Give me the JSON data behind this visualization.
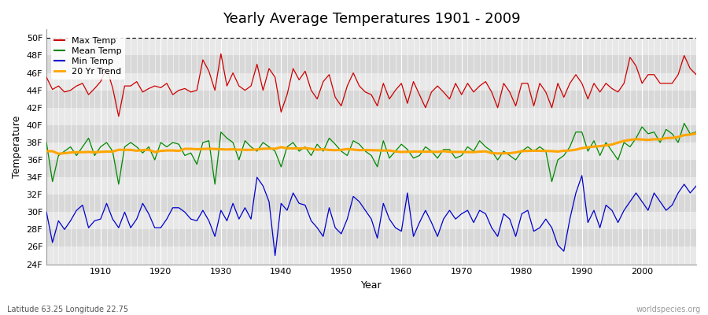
{
  "title": "Yearly Average Temperatures 1901 - 2009",
  "xlabel": "Year",
  "ylabel": "Temperature",
  "subtitle_left": "Latitude 63.25 Longitude 22.75",
  "subtitle_right": "worldspecies.org",
  "years": [
    1901,
    1902,
    1903,
    1904,
    1905,
    1906,
    1907,
    1908,
    1909,
    1910,
    1911,
    1912,
    1913,
    1914,
    1915,
    1916,
    1917,
    1918,
    1919,
    1920,
    1921,
    1922,
    1923,
    1924,
    1925,
    1926,
    1927,
    1928,
    1929,
    1930,
    1931,
    1932,
    1933,
    1934,
    1935,
    1936,
    1937,
    1938,
    1939,
    1940,
    1941,
    1942,
    1943,
    1944,
    1945,
    1946,
    1947,
    1948,
    1949,
    1950,
    1951,
    1952,
    1953,
    1954,
    1955,
    1956,
    1957,
    1958,
    1959,
    1960,
    1961,
    1962,
    1963,
    1964,
    1965,
    1966,
    1967,
    1968,
    1969,
    1970,
    1971,
    1972,
    1973,
    1974,
    1975,
    1976,
    1977,
    1978,
    1979,
    1980,
    1981,
    1982,
    1983,
    1984,
    1985,
    1986,
    1987,
    1988,
    1989,
    1990,
    1991,
    1992,
    1993,
    1994,
    1995,
    1996,
    1997,
    1998,
    1999,
    2000,
    2001,
    2002,
    2003,
    2004,
    2005,
    2006,
    2007,
    2008,
    2009
  ],
  "max_temp": [
    45.5,
    44.1,
    44.5,
    43.8,
    44.0,
    44.5,
    44.8,
    43.5,
    44.2,
    45.0,
    46.5,
    44.3,
    41.0,
    44.5,
    44.5,
    45.0,
    43.8,
    44.2,
    44.5,
    44.3,
    44.8,
    43.5,
    44.0,
    44.2,
    43.8,
    44.0,
    47.5,
    46.2,
    44.0,
    48.2,
    44.5,
    46.0,
    44.5,
    44.0,
    44.5,
    47.0,
    44.0,
    46.5,
    45.5,
    41.5,
    43.5,
    46.5,
    45.2,
    46.2,
    44.0,
    43.0,
    45.0,
    45.8,
    43.2,
    42.2,
    44.5,
    46.0,
    44.5,
    43.8,
    43.5,
    42.2,
    44.8,
    43.0,
    44.0,
    44.8,
    42.5,
    45.0,
    43.5,
    42.0,
    43.8,
    44.5,
    43.8,
    43.0,
    44.8,
    43.5,
    44.8,
    43.8,
    44.5,
    45.0,
    43.8,
    42.0,
    44.8,
    43.8,
    42.2,
    44.8,
    44.8,
    42.2,
    44.8,
    43.8,
    42.0,
    44.8,
    43.2,
    44.8,
    45.8,
    44.8,
    43.0,
    44.8,
    43.8,
    44.8,
    44.2,
    43.8,
    44.8,
    47.8,
    46.8,
    44.8,
    45.8,
    45.8,
    44.8,
    44.8,
    44.8,
    45.8,
    48.0,
    46.5,
    45.8
  ],
  "mean_temp": [
    38.0,
    33.5,
    36.5,
    37.0,
    37.5,
    36.5,
    37.5,
    38.5,
    36.5,
    37.5,
    38.0,
    37.0,
    33.2,
    37.5,
    38.0,
    37.5,
    36.8,
    37.5,
    36.0,
    38.0,
    37.5,
    38.0,
    37.8,
    36.5,
    36.8,
    35.5,
    38.0,
    38.2,
    33.2,
    39.2,
    38.5,
    38.0,
    36.0,
    38.2,
    37.5,
    37.0,
    38.0,
    37.5,
    37.0,
    35.2,
    37.5,
    38.0,
    37.0,
    37.5,
    36.5,
    37.8,
    37.0,
    38.5,
    37.8,
    37.0,
    36.5,
    38.2,
    37.8,
    37.0,
    36.5,
    35.2,
    38.2,
    36.2,
    37.0,
    37.8,
    37.2,
    36.2,
    36.5,
    37.5,
    37.0,
    36.2,
    37.2,
    37.2,
    36.2,
    36.5,
    37.5,
    37.0,
    38.2,
    37.5,
    37.0,
    36.0,
    37.0,
    36.5,
    36.0,
    37.0,
    37.5,
    37.0,
    37.5,
    37.0,
    33.5,
    36.0,
    36.5,
    37.5,
    39.2,
    39.2,
    37.0,
    38.2,
    36.5,
    38.0,
    37.0,
    36.0,
    38.0,
    37.5,
    38.5,
    39.8,
    39.0,
    39.2,
    38.0,
    39.5,
    39.0,
    38.0,
    40.2,
    39.0,
    39.2
  ],
  "min_temp": [
    30.0,
    26.5,
    29.0,
    28.0,
    29.0,
    30.2,
    30.8,
    28.2,
    29.0,
    29.2,
    31.0,
    29.2,
    28.2,
    30.0,
    28.2,
    29.2,
    31.0,
    29.8,
    28.2,
    28.2,
    29.2,
    30.5,
    30.5,
    30.0,
    29.2,
    29.0,
    30.2,
    29.0,
    27.2,
    30.2,
    29.0,
    31.0,
    29.2,
    30.5,
    29.2,
    34.0,
    33.0,
    31.2,
    25.0,
    31.0,
    30.2,
    32.2,
    31.0,
    30.8,
    29.0,
    28.2,
    27.2,
    30.5,
    28.2,
    27.5,
    29.2,
    31.8,
    31.2,
    30.2,
    29.2,
    27.0,
    31.0,
    29.2,
    28.2,
    27.8,
    32.2,
    27.2,
    28.8,
    30.2,
    28.8,
    27.2,
    29.2,
    30.2,
    29.2,
    29.8,
    30.2,
    28.8,
    30.2,
    29.8,
    28.2,
    27.2,
    29.8,
    29.2,
    27.2,
    29.8,
    30.2,
    27.8,
    28.2,
    29.2,
    28.2,
    26.2,
    25.5,
    29.2,
    32.2,
    34.2,
    28.8,
    30.2,
    28.2,
    30.8,
    30.2,
    28.8,
    30.2,
    31.2,
    32.2,
    31.2,
    30.2,
    32.2,
    31.2,
    30.2,
    30.8,
    32.2,
    33.2,
    32.2,
    33.0
  ],
  "color_max": "#cc0000",
  "color_mean": "#008800",
  "color_min": "#0000cc",
  "color_trend": "#ffa500",
  "color_bg_light": "#e8e8e8",
  "color_bg_dark": "#d8d8d8",
  "ylim_min": 24,
  "ylim_max": 51,
  "yticks": [
    24,
    26,
    28,
    30,
    32,
    34,
    36,
    38,
    40,
    42,
    44,
    46,
    48,
    50
  ],
  "xticks_major": [
    1910,
    1920,
    1930,
    1940,
    1950,
    1960,
    1970,
    1980,
    1990,
    2000
  ],
  "dotted_line_y": 50,
  "trend_window": 20
}
